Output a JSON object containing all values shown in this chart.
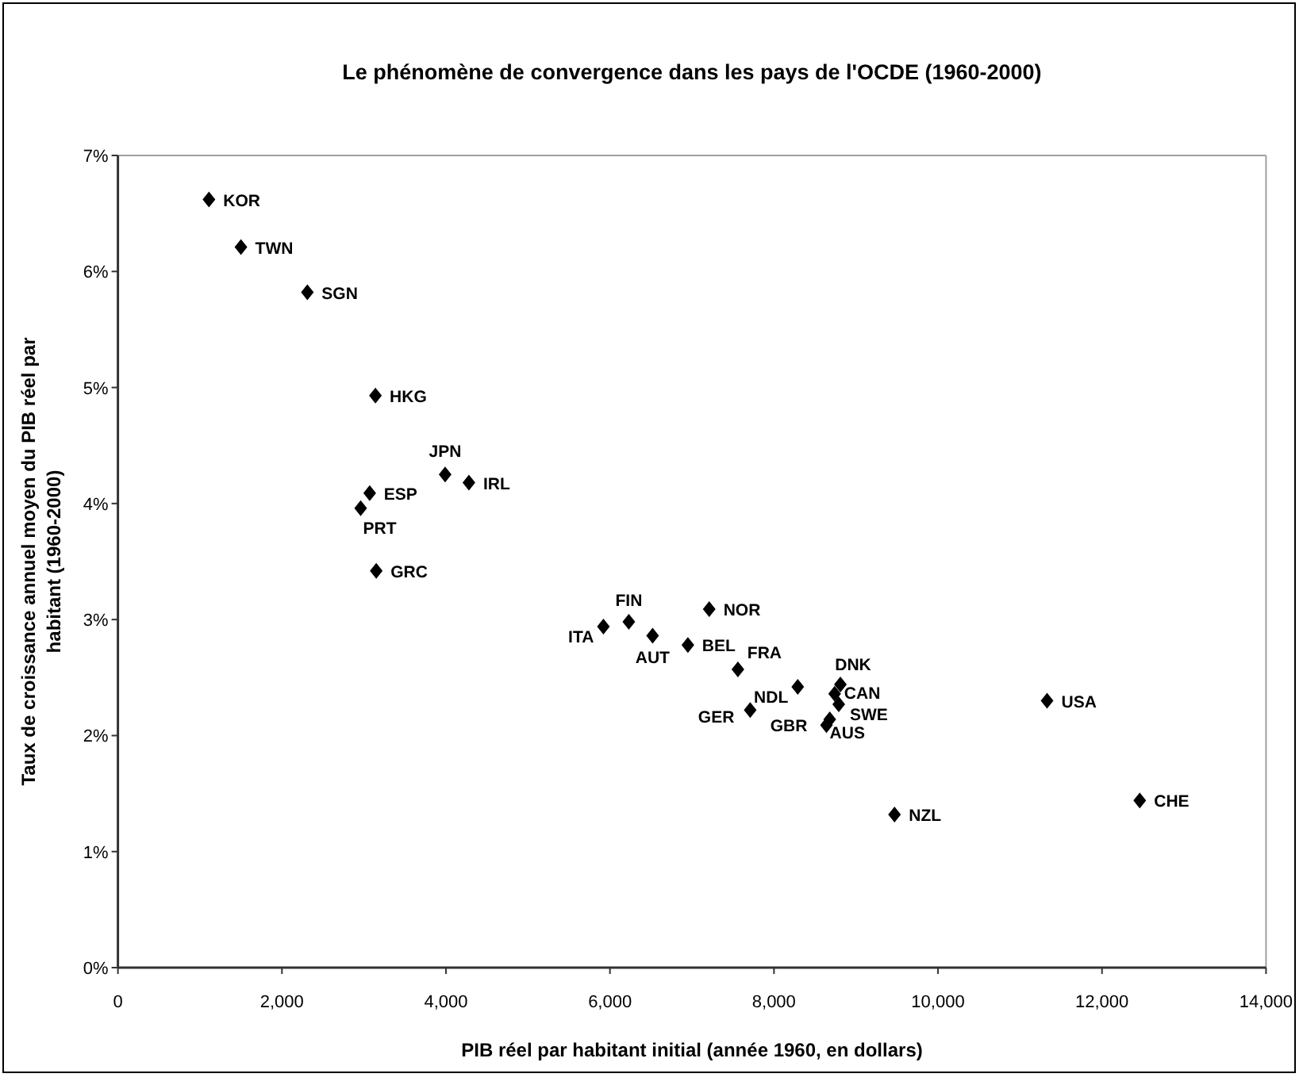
{
  "chart_data": {
    "type": "scatter",
    "title": "Le phénomène de convergence dans les pays de l'OCDE (1960-2000)",
    "xlabel": "PIB réel par habitant initial (année 1960, en dollars)",
    "ylabel": "Taux de croissance annuel moyen du PIB réel par habitant (1960-2000)",
    "xlim": [
      0,
      14000
    ],
    "ylim": [
      0,
      7
    ],
    "xticks": [
      0,
      {
        "value": 2000,
        "label": "2,000"
      },
      {
        "value": 4000,
        "label": "4,000"
      },
      {
        "value": 6000,
        "label": "6,000"
      },
      {
        "value": 8000,
        "label": "8,000"
      },
      {
        "value": 10000,
        "label": "10,000"
      },
      {
        "value": 12000,
        "label": "12,000"
      },
      {
        "value": 14000,
        "label": "14,000"
      }
    ],
    "yticks": [
      {
        "value": 0,
        "label": "0%"
      },
      {
        "value": 1,
        "label": "1%"
      },
      {
        "value": 2,
        "label": "2%"
      },
      {
        "value": 3,
        "label": "3%"
      },
      {
        "value": 4,
        "label": "4%"
      },
      {
        "value": 5,
        "label": "5%"
      },
      {
        "value": 6,
        "label": "6%"
      },
      {
        "value": 7,
        "label": "7%"
      }
    ],
    "grid": false,
    "legend": false,
    "marker": "diamond",
    "series": [
      {
        "name": "KOR",
        "color": "#000000",
        "x": [
          1110
        ],
        "values": [
          6.62
        ]
      },
      {
        "name": "TWN",
        "color": "#000000",
        "x": [
          1500
        ],
        "values": [
          6.21
        ]
      },
      {
        "name": "SGN",
        "color": "#000000",
        "x": [
          2310
        ],
        "values": [
          5.82
        ]
      },
      {
        "name": "HKG",
        "color": "#000000",
        "x": [
          3140
        ],
        "values": [
          4.93
        ]
      },
      {
        "name": "JPN",
        "color": "#000000",
        "x": [
          3990
        ],
        "values": [
          4.25
        ]
      },
      {
        "name": "IRL",
        "color": "#000000",
        "x": [
          4280
        ],
        "values": [
          4.18
        ]
      },
      {
        "name": "ESP",
        "color": "#000000",
        "x": [
          3070
        ],
        "values": [
          4.09
        ]
      },
      {
        "name": "PRT",
        "color": "#000000",
        "x": [
          2960
        ],
        "values": [
          3.96
        ]
      },
      {
        "name": "GRC",
        "color": "#000000",
        "x": [
          3150
        ],
        "values": [
          3.42
        ]
      },
      {
        "name": "ITA",
        "color": "#000000",
        "x": [
          5920
        ],
        "values": [
          2.94
        ]
      },
      {
        "name": "FIN",
        "color": "#000000",
        "x": [
          6230
        ],
        "values": [
          2.98
        ]
      },
      {
        "name": "AUT",
        "color": "#000000",
        "x": [
          6520
        ],
        "values": [
          2.86
        ]
      },
      {
        "name": "BEL",
        "color": "#000000",
        "x": [
          6950
        ],
        "values": [
          2.78
        ]
      },
      {
        "name": "NOR",
        "color": "#000000",
        "x": [
          7210
        ],
        "values": [
          3.09
        ]
      },
      {
        "name": "FRA",
        "color": "#000000",
        "x": [
          7560
        ],
        "values": [
          2.57
        ]
      },
      {
        "name": "NDL",
        "color": "#000000",
        "x": [
          8290
        ],
        "values": [
          2.42
        ]
      },
      {
        "name": "GER",
        "color": "#000000",
        "x": [
          7710
        ],
        "values": [
          2.22
        ]
      },
      {
        "name": "GBR",
        "color": "#000000",
        "x": [
          8640
        ],
        "values": [
          2.09
        ]
      },
      {
        "name": "AUS",
        "color": "#000000",
        "x": [
          8680
        ],
        "values": [
          2.14
        ]
      },
      {
        "name": "DNK",
        "color": "#000000",
        "x": [
          8810
        ],
        "values": [
          2.44
        ]
      },
      {
        "name": "CAN",
        "color": "#000000",
        "x": [
          8740
        ],
        "values": [
          2.36
        ]
      },
      {
        "name": "SWE",
        "color": "#000000",
        "x": [
          8790
        ],
        "values": [
          2.27
        ]
      },
      {
        "name": "NZL",
        "color": "#000000",
        "x": [
          9470
        ],
        "values": [
          1.32
        ]
      },
      {
        "name": "USA",
        "color": "#000000",
        "x": [
          11330
        ],
        "values": [
          2.3
        ]
      },
      {
        "name": "CHE",
        "color": "#000000",
        "x": [
          12460
        ],
        "values": [
          1.44
        ]
      }
    ]
  }
}
